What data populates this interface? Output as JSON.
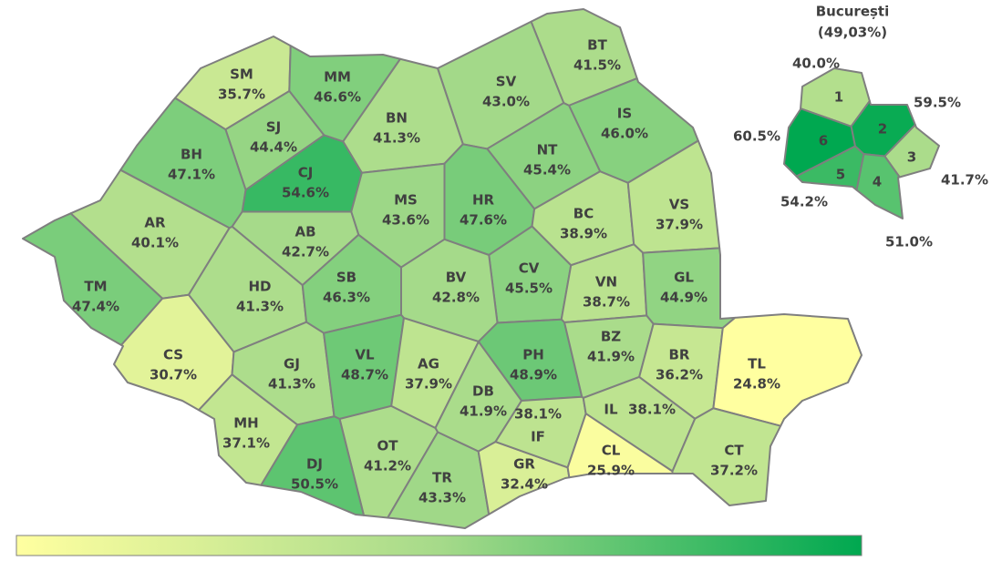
{
  "color_scale": [
    "#ffffa0",
    "#a6da8a",
    "#00a850"
  ],
  "counties": [
    {
      "code": "SM",
      "value": 35.7,
      "label": "35.7%"
    },
    {
      "code": "MM",
      "value": 46.6,
      "label": "46.6%"
    },
    {
      "code": "BT",
      "value": 41.5,
      "label": "41.5%"
    },
    {
      "code": "SV",
      "value": 43.0,
      "label": "43.0%"
    },
    {
      "code": "SJ",
      "value": 44.4,
      "label": "44.4%"
    },
    {
      "code": "BN",
      "value": 41.3,
      "label": "41.3%"
    },
    {
      "code": "IS",
      "value": 46.0,
      "label": "46.0%"
    },
    {
      "code": "BH",
      "value": 47.1,
      "label": "47.1%"
    },
    {
      "code": "CJ",
      "value": 54.6,
      "label": "54.6%"
    },
    {
      "code": "NT",
      "value": 45.4,
      "label": "45.4%"
    },
    {
      "code": "MS",
      "value": 43.6,
      "label": "43.6%"
    },
    {
      "code": "HR",
      "value": 47.6,
      "label": "47.6%"
    },
    {
      "code": "BC",
      "value": 38.9,
      "label": "38.9%"
    },
    {
      "code": "VS",
      "value": 37.9,
      "label": "37.9%"
    },
    {
      "code": "AR",
      "value": 40.1,
      "label": "40.1%"
    },
    {
      "code": "AB",
      "value": 42.7,
      "label": "42.7%"
    },
    {
      "code": "CV",
      "value": 45.5,
      "label": "45.5%"
    },
    {
      "code": "TM",
      "value": 47.4,
      "label": "47.4%"
    },
    {
      "code": "HD",
      "value": 41.3,
      "label": "41.3%"
    },
    {
      "code": "SB",
      "value": 46.3,
      "label": "46.3%"
    },
    {
      "code": "BV",
      "value": 42.8,
      "label": "42.8%"
    },
    {
      "code": "VN",
      "value": 38.7,
      "label": "38.7%"
    },
    {
      "code": "GL",
      "value": 44.9,
      "label": "44.9%"
    },
    {
      "code": "CS",
      "value": 30.7,
      "label": "30.7%"
    },
    {
      "code": "GJ",
      "value": 41.3,
      "label": "41.3%"
    },
    {
      "code": "VL",
      "value": 48.7,
      "label": "48.7%"
    },
    {
      "code": "AG",
      "value": 37.9,
      "label": "37.9%"
    },
    {
      "code": "PH",
      "value": 48.9,
      "label": "48.9%"
    },
    {
      "code": "BZ",
      "value": 41.9,
      "label": "41.9%"
    },
    {
      "code": "BR",
      "value": 36.2,
      "label": "36.2%"
    },
    {
      "code": "TL",
      "value": 24.8,
      "label": "24.8%"
    },
    {
      "code": "DB",
      "value": 41.9,
      "label": "41.9%"
    },
    {
      "code": "MH",
      "value": 37.1,
      "label": "37.1%"
    },
    {
      "code": "OT",
      "value": 41.2,
      "label": "41.2%"
    },
    {
      "code": "DJ",
      "value": 50.5,
      "label": "50.5%"
    },
    {
      "code": "TR",
      "value": 43.3,
      "label": "43.3%"
    },
    {
      "code": "GR",
      "value": 32.4,
      "label": "32.4%"
    },
    {
      "code": "IF",
      "value": 38.1,
      "label": "38.1%"
    },
    {
      "code": "IL",
      "value": 38.1,
      "label": "38.1%"
    },
    {
      "code": "CL",
      "value": 25.9,
      "label": "25.9%"
    },
    {
      "code": "CT",
      "value": 37.2,
      "label": "37.2%"
    }
  ],
  "bucharest": {
    "title": "București",
    "subtitle": "(49,03%)",
    "sectors": [
      {
        "number": "1",
        "value": 40.0,
        "label": "40.0%"
      },
      {
        "number": "2",
        "value": 59.5,
        "label": "59.5%"
      },
      {
        "number": "3",
        "value": 41.7,
        "label": "41.7%"
      },
      {
        "number": "4",
        "value": 51.0,
        "label": "51.0%"
      },
      {
        "number": "5",
        "value": 54.2,
        "label": "54.2%"
      },
      {
        "number": "6",
        "value": 60.5,
        "label": "60.5%"
      }
    ]
  }
}
